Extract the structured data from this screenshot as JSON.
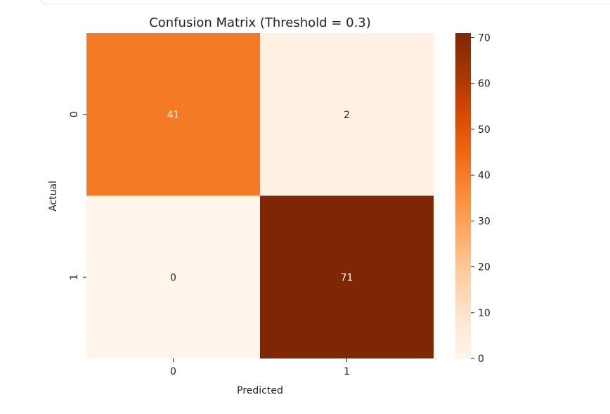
{
  "chart_data": {
    "type": "heatmap",
    "title": "Confusion Matrix (Threshold = 0.3)",
    "xlabel": "Predicted",
    "ylabel": "Actual",
    "x_categories": [
      "0",
      "1"
    ],
    "y_categories": [
      "0",
      "1"
    ],
    "values": [
      [
        41,
        2
      ],
      [
        0,
        71
      ]
    ],
    "value_labels": [
      [
        "41",
        "2"
      ],
      [
        "0",
        "71"
      ]
    ],
    "colormap": "Oranges",
    "colorbar": {
      "range": [
        0,
        71
      ],
      "ticks": [
        0,
        10,
        20,
        30,
        40,
        50,
        60,
        70
      ],
      "tick_labels": [
        "0",
        "10",
        "20",
        "30",
        "40",
        "50",
        "60",
        "70"
      ]
    },
    "cell_colors": [
      [
        "#f57a25",
        "#fff0e3"
      ],
      [
        "#fff5eb",
        "#7f2704"
      ]
    ],
    "annotation_colors": [
      [
        "#ffffff",
        "#262626"
      ],
      [
        "#262626",
        "#ffffff"
      ]
    ]
  }
}
